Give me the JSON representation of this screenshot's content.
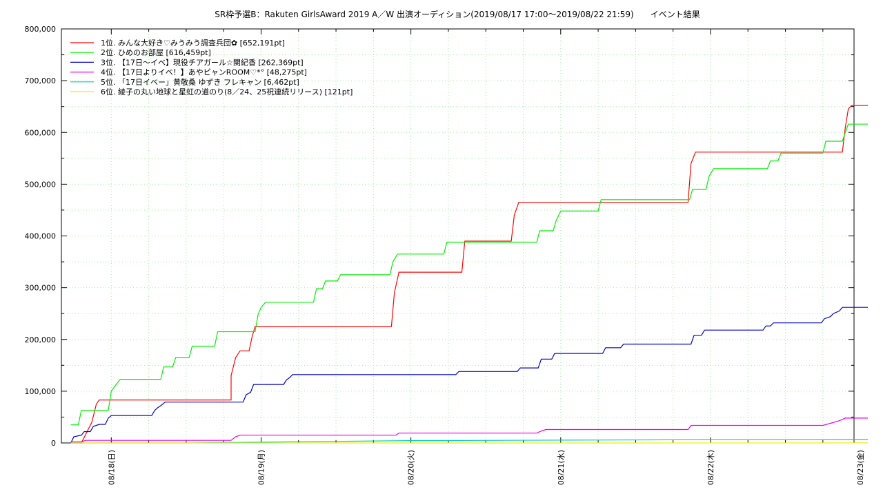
{
  "chart_data": {
    "type": "line",
    "title": "SR枠予選B：Rakuten GirlsAward 2019 A／W 出演オーディション(2019/08/17 17:00～2019/08/22 21:59)　　イベント結果",
    "xlabel": "",
    "ylabel": "",
    "xlim": [
      -0.333,
      4.958
    ],
    "ylim": [
      0,
      800000
    ],
    "y_ticks": [
      0,
      100000,
      200000,
      300000,
      400000,
      500000,
      600000,
      700000,
      800000
    ],
    "y_tick_labels": [
      "0",
      "100,000",
      "200,000",
      "300,000",
      "400,000",
      "500,000",
      "600,000",
      "700,000",
      "800,000"
    ],
    "x_ticks": [
      0,
      1,
      2,
      3,
      4,
      5
    ],
    "x_tick_labels": [
      "08/18(日)",
      "08/19(月)",
      "08/20(火)",
      "08/21(水)",
      "08/22(木)",
      "08/23(金)"
    ],
    "x_unit_note": "",
    "grid": true,
    "legend_position": "top-left",
    "series": [
      {
        "name": "1位. みんな大好き♡みうみう調査兵団✿ [652,191pt]",
        "color": "#ff0000",
        "points": [
          [
            -0.27,
            0
          ],
          [
            -0.2,
            0
          ],
          [
            -0.13,
            40000
          ],
          [
            -0.1,
            75000
          ],
          [
            -0.08,
            83000
          ],
          [
            0.8,
            83000
          ],
          [
            0.8,
            130000
          ],
          [
            0.83,
            165000
          ],
          [
            0.86,
            178000
          ],
          [
            0.92,
            178000
          ],
          [
            0.94,
            205000
          ],
          [
            0.96,
            225000
          ],
          [
            1.87,
            225000
          ],
          [
            1.89,
            290000
          ],
          [
            1.92,
            330000
          ],
          [
            2.34,
            330000
          ],
          [
            2.36,
            390000
          ],
          [
            2.67,
            390000
          ],
          [
            2.69,
            440000
          ],
          [
            2.72,
            465000
          ],
          [
            3.85,
            465000
          ],
          [
            3.87,
            540000
          ],
          [
            3.9,
            562000
          ],
          [
            4.88,
            562000
          ],
          [
            4.9,
            610000
          ],
          [
            4.92,
            645000
          ],
          [
            4.94,
            652000
          ],
          [
            5.05,
            652000
          ]
        ]
      },
      {
        "name": "2位. ひめのお部屋 [616,459pt]",
        "color": "#00ee00",
        "points": [
          [
            -0.27,
            35000
          ],
          [
            -0.22,
            35000
          ],
          [
            -0.2,
            63000
          ],
          [
            -0.02,
            63000
          ],
          [
            0,
            100000
          ],
          [
            0.03,
            112000
          ],
          [
            0.06,
            123000
          ],
          [
            0.33,
            123000
          ],
          [
            0.35,
            147000
          ],
          [
            0.41,
            147000
          ],
          [
            0.43,
            165000
          ],
          [
            0.52,
            165000
          ],
          [
            0.54,
            187000
          ],
          [
            0.69,
            187000
          ],
          [
            0.71,
            215000
          ],
          [
            0.96,
            215000
          ],
          [
            0.98,
            248000
          ],
          [
            1.0,
            262000
          ],
          [
            1.03,
            272000
          ],
          [
            1.35,
            272000
          ],
          [
            1.37,
            298000
          ],
          [
            1.41,
            298000
          ],
          [
            1.43,
            313000
          ],
          [
            1.51,
            313000
          ],
          [
            1.53,
            325000
          ],
          [
            1.86,
            325000
          ],
          [
            1.88,
            350000
          ],
          [
            1.91,
            365000
          ],
          [
            2.22,
            365000
          ],
          [
            2.24,
            388000
          ],
          [
            2.84,
            388000
          ],
          [
            2.86,
            410000
          ],
          [
            2.95,
            410000
          ],
          [
            2.97,
            430000
          ],
          [
            3.0,
            448000
          ],
          [
            3.25,
            448000
          ],
          [
            3.27,
            470000
          ],
          [
            3.86,
            470000
          ],
          [
            3.88,
            490000
          ],
          [
            3.97,
            490000
          ],
          [
            3.99,
            515000
          ],
          [
            4.02,
            530000
          ],
          [
            4.38,
            530000
          ],
          [
            4.4,
            545000
          ],
          [
            4.45,
            545000
          ],
          [
            4.47,
            560000
          ],
          [
            4.75,
            560000
          ],
          [
            4.77,
            583000
          ],
          [
            4.88,
            583000
          ],
          [
            4.9,
            600000
          ],
          [
            4.92,
            616000
          ],
          [
            5.05,
            616000
          ]
        ]
      },
      {
        "name": "3位. 【17日～イベ】現役チアガール☆関紀香 [262,369pt]",
        "color": "#0000cc",
        "points": [
          [
            -0.27,
            0
          ],
          [
            -0.25,
            12000
          ],
          [
            -0.2,
            15000
          ],
          [
            -0.18,
            22000
          ],
          [
            -0.14,
            22000
          ],
          [
            -0.12,
            32000
          ],
          [
            -0.08,
            36000
          ],
          [
            -0.04,
            36000
          ],
          [
            -0.02,
            48000
          ],
          [
            0.0,
            53000
          ],
          [
            0.27,
            53000
          ],
          [
            0.29,
            63000
          ],
          [
            0.31,
            68000
          ],
          [
            0.33,
            72000
          ],
          [
            0.36,
            79000
          ],
          [
            0.88,
            79000
          ],
          [
            0.9,
            93000
          ],
          [
            0.93,
            98000
          ],
          [
            0.95,
            113000
          ],
          [
            1.15,
            113000
          ],
          [
            1.17,
            122000
          ],
          [
            1.19,
            126000
          ],
          [
            1.21,
            132000
          ],
          [
            2.3,
            132000
          ],
          [
            2.32,
            138000
          ],
          [
            2.71,
            138000
          ],
          [
            2.73,
            145000
          ],
          [
            2.85,
            145000
          ],
          [
            2.87,
            162000
          ],
          [
            2.94,
            162000
          ],
          [
            2.96,
            173000
          ],
          [
            3.28,
            173000
          ],
          [
            3.3,
            184000
          ],
          [
            3.4,
            184000
          ],
          [
            3.42,
            191000
          ],
          [
            3.87,
            191000
          ],
          [
            3.89,
            208000
          ],
          [
            3.94,
            208000
          ],
          [
            3.96,
            218000
          ],
          [
            4.35,
            218000
          ],
          [
            4.37,
            226000
          ],
          [
            4.4,
            226000
          ],
          [
            4.42,
            232000
          ],
          [
            4.74,
            232000
          ],
          [
            4.76,
            240000
          ],
          [
            4.8,
            244000
          ],
          [
            4.82,
            250000
          ],
          [
            4.86,
            255000
          ],
          [
            4.88,
            262000
          ],
          [
            5.05,
            262000
          ]
        ]
      },
      {
        "name": "4位. 【17日よりイベ！】あやピャンROOM♡*° [48,275pt]",
        "color": "#ee00ee",
        "points": [
          [
            -0.27,
            2000
          ],
          [
            -0.2,
            2000
          ],
          [
            -0.17,
            5000
          ],
          [
            0.8,
            5000
          ],
          [
            0.83,
            12000
          ],
          [
            0.86,
            15000
          ],
          [
            1.9,
            15000
          ],
          [
            1.92,
            19000
          ],
          [
            2.84,
            19000
          ],
          [
            2.87,
            23000
          ],
          [
            2.9,
            26000
          ],
          [
            3.85,
            26000
          ],
          [
            3.87,
            34000
          ],
          [
            4.75,
            34000
          ],
          [
            4.8,
            38000
          ],
          [
            4.86,
            43000
          ],
          [
            4.9,
            48000
          ],
          [
            5.05,
            48000
          ]
        ]
      },
      {
        "name": "5位. 「17日イベー」黄敬桑 ゆずき フレキャン [6,462pt]",
        "color": "#00cccc",
        "points": [
          [
            -0.27,
            0
          ],
          [
            0.5,
            0
          ],
          [
            1.0,
            1500
          ],
          [
            1.5,
            3000
          ],
          [
            2.0,
            4500
          ],
          [
            3.0,
            5500
          ],
          [
            4.0,
            6200
          ],
          [
            5.05,
            6460
          ]
        ]
      },
      {
        "name": "6位. 綾子の丸い地球と星虹の道のり(8／24、25祝連続リリース) [121pt]",
        "color": "#eeee00",
        "points": [
          [
            -0.27,
            0
          ],
          [
            3.0,
            60
          ],
          [
            5.05,
            121
          ]
        ]
      }
    ]
  }
}
